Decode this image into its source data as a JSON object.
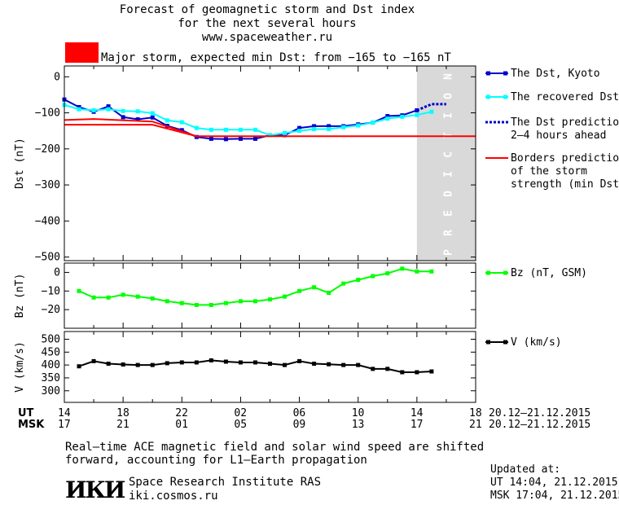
{
  "header": {
    "title_lines": [
      "Forecast of geomagnetic storm and Dst index",
      "for the next several hours",
      "www.spaceweather.ru"
    ],
    "storm_label": "Major storm, expected min Dst: from −165 to −165 nT",
    "storm_color": "#ff0000"
  },
  "footer": {
    "ut_label": "UT",
    "msk_label": "MSK",
    "ut_ticks": [
      "14",
      "18",
      "22",
      "02",
      "06",
      "10",
      "14",
      "18"
    ],
    "msk_ticks": [
      "17",
      "21",
      "01",
      "05",
      "09",
      "13",
      "17",
      "21"
    ],
    "ut_range": "20.12–21.12.2015",
    "msk_range": "20.12–21.12.2015",
    "note_line1": "Real–time ACE magnetic field and solar wind speed are shifted",
    "note_line2": "forward, accounting for L1–Earth propagation",
    "institute_name": "Space Research Institute RAS",
    "institute_url": "iki.cosmos.ru",
    "logo_text": "ИКИ",
    "updated_label": "Updated at:",
    "updated_ut": "UT  14:04, 21.12.2015",
    "updated_msk": "MSK 17:04, 21.12.2015"
  },
  "chart_data": [
    {
      "type": "line",
      "ylabel": "Dst (nT)",
      "ylim": [
        -510,
        30
      ],
      "yticks": [
        0,
        -100,
        -200,
        -300,
        -400,
        -500
      ],
      "x_unit": "hours since 14 UT",
      "prediction_band": {
        "x_start": 24.0,
        "label": "PREDICTION",
        "color": "#d9d9d9"
      },
      "series": [
        {
          "name": "The Dst, Kyoto",
          "color": "#0000cc",
          "x": [
            0,
            1,
            2,
            3,
            4,
            5,
            6,
            7,
            8,
            9,
            10,
            11,
            12,
            13,
            14,
            15,
            16,
            17,
            18,
            19,
            20,
            21,
            22,
            23,
            24
          ],
          "y": [
            -63,
            -84,
            -97,
            -82,
            -112,
            -118,
            -113,
            -136,
            -148,
            -167,
            -172,
            -173,
            -172,
            -172,
            -162,
            -162,
            -142,
            -137,
            -137,
            -137,
            -132,
            -127,
            -109,
            -107,
            -93
          ]
        },
        {
          "name": "The recovered Dst",
          "color": "#00ffff",
          "x": [
            0,
            1,
            2,
            3,
            4,
            5,
            6,
            7,
            8,
            9,
            10,
            11,
            12,
            13,
            14,
            15,
            16,
            17,
            18,
            19,
            20,
            21,
            22,
            23,
            24,
            25
          ],
          "y": [
            -78,
            -90,
            -93,
            -90,
            -95,
            -96,
            -101,
            -121,
            -126,
            -142,
            -147,
            -147,
            -147,
            -147,
            -162,
            -156,
            -150,
            -145,
            -145,
            -140,
            -135,
            -127,
            -116,
            -111,
            -106,
            -97
          ]
        },
        {
          "name": "The Dst prediction 2–4 hours ahead",
          "color": "#0000cc",
          "dashed": true,
          "x": [
            24,
            25,
            26
          ],
          "y": [
            -93,
            -76,
            -76
          ]
        },
        {
          "name": "Borders prediction of the storm strength (min Dst)",
          "color": "#ff0000",
          "x": [
            0,
            6,
            9,
            28
          ],
          "y": [
            -133,
            -133,
            -165,
            -165
          ]
        },
        {
          "name": "",
          "color": "#ff0000",
          "x": [
            0,
            2,
            6,
            9
          ],
          "y": [
            -120,
            -117,
            -124,
            -165
          ]
        }
      ],
      "legend": [
        {
          "lines": [
            "The Dst, Kyoto"
          ],
          "color": "#0000cc",
          "style": "marker"
        },
        {
          "lines": [
            "The recovered Dst"
          ],
          "color": "#00ffff",
          "style": "marker"
        },
        {
          "lines": [
            "The Dst prediction",
            "2–4 hours ahead"
          ],
          "color": "#0000cc",
          "style": "dashed"
        },
        {
          "lines": [
            "Borders prediction",
            "of the storm",
            "strength (min Dst)"
          ],
          "color": "#ff0000",
          "style": "line"
        }
      ]
    },
    {
      "type": "line",
      "ylabel": "Bz (nT)",
      "ylim": [
        -30,
        5
      ],
      "yticks": [
        0,
        -10,
        -20
      ],
      "series": [
        {
          "name": "Bz (nT, GSM)",
          "color": "#00ff00",
          "x": [
            1,
            2,
            3,
            4,
            5,
            6,
            7,
            8,
            9,
            10,
            11,
            12,
            13,
            14,
            15,
            16,
            17,
            18,
            19,
            20,
            21,
            22,
            23,
            24,
            25
          ],
          "y": [
            -10,
            -13.5,
            -13.5,
            -12,
            -13,
            -14,
            -15.5,
            -16.5,
            -17.5,
            -17.5,
            -16.5,
            -15.5,
            -15.5,
            -14.5,
            -13,
            -10,
            -8,
            -11,
            -6,
            -4,
            -2,
            -0.5,
            2,
            0.5,
            0.5
          ]
        }
      ],
      "legend": [
        {
          "lines": [
            "Bz (nT, GSM)"
          ],
          "color": "#00ff00",
          "style": "marker"
        }
      ]
    },
    {
      "type": "line",
      "ylabel": "V (km/s)",
      "ylim": [
        255,
        530
      ],
      "yticks": [
        500,
        450,
        400,
        350,
        300
      ],
      "series": [
        {
          "name": "V (km/s)",
          "color": "#000000",
          "x": [
            1,
            2,
            3,
            4,
            5,
            6,
            7,
            8,
            9,
            10,
            11,
            12,
            13,
            14,
            15,
            16,
            17,
            18,
            19,
            20,
            21,
            22,
            23,
            24,
            25
          ],
          "y": [
            395,
            415,
            405,
            402,
            400,
            400,
            407,
            410,
            410,
            418,
            413,
            410,
            410,
            405,
            400,
            415,
            405,
            403,
            400,
            400,
            385,
            385,
            372,
            372,
            375
          ]
        }
      ],
      "legend": [
        {
          "lines": [
            "V (km/s)"
          ],
          "color": "#000000",
          "style": "marker"
        }
      ]
    }
  ]
}
